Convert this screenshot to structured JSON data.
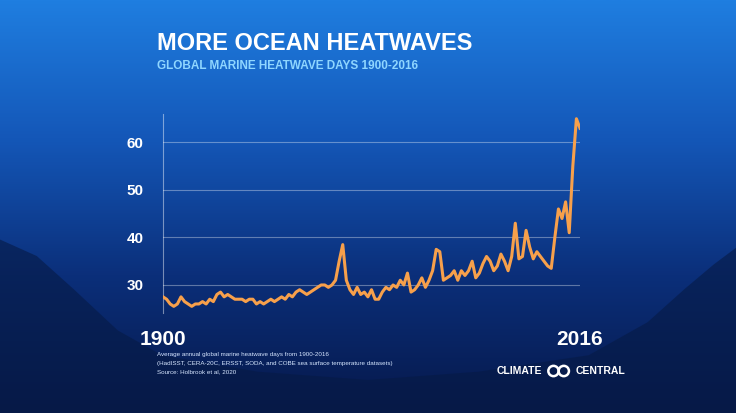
{
  "chart_data": {
    "type": "line",
    "title": "MORE OCEAN HEATWAVES",
    "subtitle": "GLOBAL MARINE HEATWAVE DAYS 1900-2016",
    "annotations": [
      "Average annual global marine heatwave days from 1900-2016",
      "(HadISST, CERA-20C, ERSST, SODA, and COBE sea surface temperature datasets)",
      "Source: Holbrook et al, 2020"
    ],
    "logo": "CLIMATE CENTRAL",
    "x": [
      1900,
      1901,
      1902,
      1903,
      1904,
      1905,
      1906,
      1907,
      1908,
      1909,
      1910,
      1911,
      1912,
      1913,
      1914,
      1915,
      1916,
      1917,
      1918,
      1919,
      1920,
      1921,
      1922,
      1923,
      1924,
      1925,
      1926,
      1927,
      1928,
      1929,
      1930,
      1931,
      1932,
      1933,
      1934,
      1935,
      1936,
      1937,
      1938,
      1939,
      1940,
      1941,
      1942,
      1943,
      1944,
      1945,
      1946,
      1947,
      1948,
      1949,
      1950,
      1951,
      1952,
      1953,
      1954,
      1955,
      1956,
      1957,
      1958,
      1959,
      1960,
      1961,
      1962,
      1963,
      1964,
      1965,
      1966,
      1967,
      1968,
      1969,
      1970,
      1971,
      1972,
      1973,
      1974,
      1975,
      1976,
      1977,
      1978,
      1979,
      1980,
      1981,
      1982,
      1983,
      1984,
      1985,
      1986,
      1987,
      1988,
      1989,
      1990,
      1991,
      1992,
      1993,
      1994,
      1995,
      1996,
      1997,
      1998,
      1999,
      2000,
      2001,
      2002,
      2003,
      2004,
      2005,
      2006,
      2007,
      2008,
      2009,
      2010,
      2011,
      2012,
      2013,
      2014,
      2015,
      2016
    ],
    "values": [
      27.5,
      27,
      26,
      25.5,
      26,
      27.5,
      26.5,
      26,
      25.5,
      26,
      26,
      26.5,
      26,
      27,
      26.5,
      28,
      28.5,
      27.5,
      28,
      27.5,
      27,
      27,
      27,
      26.5,
      27,
      27,
      26,
      26.5,
      26,
      26.5,
      27,
      26.5,
      27,
      27.5,
      27,
      28,
      27.5,
      28.5,
      29,
      28.5,
      28,
      28.5,
      29,
      29.5,
      30,
      30,
      29.5,
      30,
      31,
      35,
      38.5,
      31,
      29,
      28,
      29.5,
      28,
      28.5,
      27.5,
      29,
      27,
      27,
      28.5,
      29.5,
      29,
      30,
      29.5,
      31,
      30,
      32.5,
      28.5,
      29,
      30,
      31.5,
      29.5,
      31,
      33,
      37.5,
      37,
      31,
      31.5,
      32,
      33,
      31,
      33,
      32,
      33,
      35,
      31.5,
      32.5,
      34.5,
      36,
      35,
      33,
      34,
      36.5,
      35,
      33,
      36,
      43,
      35.5,
      36,
      41.5,
      38,
      35.5,
      37,
      36,
      35,
      34,
      33.5,
      40,
      46,
      44,
      47.5,
      41,
      55,
      65,
      63
    ],
    "color": "#f7a04b",
    "xlim": [
      1900,
      2016
    ],
    "xticks": [
      1900,
      2016
    ],
    "ylim": [
      24,
      66
    ],
    "yticks": [
      30,
      40,
      50,
      60
    ],
    "grid": "y"
  }
}
